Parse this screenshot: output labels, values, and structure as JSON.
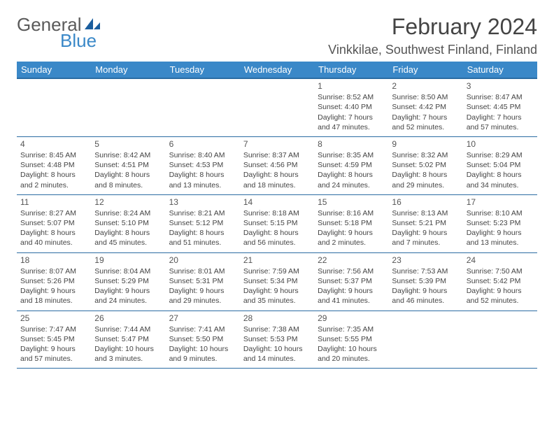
{
  "logo": {
    "text1": "General",
    "text2": "Blue",
    "sail_color": "#1b5e9e"
  },
  "header": {
    "month_title": "February 2024",
    "location": "Vinkkilae, Southwest Finland, Finland"
  },
  "calendar": {
    "header_bg": "#3a88c8",
    "header_border": "#2b6ca3",
    "day_headers": [
      "Sunday",
      "Monday",
      "Tuesday",
      "Wednesday",
      "Thursday",
      "Friday",
      "Saturday"
    ],
    "first_day_column": 4,
    "days": [
      {
        "n": 1,
        "sunrise": "8:52 AM",
        "sunset": "4:40 PM",
        "daylight": "7 hours and 47 minutes."
      },
      {
        "n": 2,
        "sunrise": "8:50 AM",
        "sunset": "4:42 PM",
        "daylight": "7 hours and 52 minutes."
      },
      {
        "n": 3,
        "sunrise": "8:47 AM",
        "sunset": "4:45 PM",
        "daylight": "7 hours and 57 minutes."
      },
      {
        "n": 4,
        "sunrise": "8:45 AM",
        "sunset": "4:48 PM",
        "daylight": "8 hours and 2 minutes."
      },
      {
        "n": 5,
        "sunrise": "8:42 AM",
        "sunset": "4:51 PM",
        "daylight": "8 hours and 8 minutes."
      },
      {
        "n": 6,
        "sunrise": "8:40 AM",
        "sunset": "4:53 PM",
        "daylight": "8 hours and 13 minutes."
      },
      {
        "n": 7,
        "sunrise": "8:37 AM",
        "sunset": "4:56 PM",
        "daylight": "8 hours and 18 minutes."
      },
      {
        "n": 8,
        "sunrise": "8:35 AM",
        "sunset": "4:59 PM",
        "daylight": "8 hours and 24 minutes."
      },
      {
        "n": 9,
        "sunrise": "8:32 AM",
        "sunset": "5:02 PM",
        "daylight": "8 hours and 29 minutes."
      },
      {
        "n": 10,
        "sunrise": "8:29 AM",
        "sunset": "5:04 PM",
        "daylight": "8 hours and 34 minutes."
      },
      {
        "n": 11,
        "sunrise": "8:27 AM",
        "sunset": "5:07 PM",
        "daylight": "8 hours and 40 minutes."
      },
      {
        "n": 12,
        "sunrise": "8:24 AM",
        "sunset": "5:10 PM",
        "daylight": "8 hours and 45 minutes."
      },
      {
        "n": 13,
        "sunrise": "8:21 AM",
        "sunset": "5:12 PM",
        "daylight": "8 hours and 51 minutes."
      },
      {
        "n": 14,
        "sunrise": "8:18 AM",
        "sunset": "5:15 PM",
        "daylight": "8 hours and 56 minutes."
      },
      {
        "n": 15,
        "sunrise": "8:16 AM",
        "sunset": "5:18 PM",
        "daylight": "9 hours and 2 minutes."
      },
      {
        "n": 16,
        "sunrise": "8:13 AM",
        "sunset": "5:21 PM",
        "daylight": "9 hours and 7 minutes."
      },
      {
        "n": 17,
        "sunrise": "8:10 AM",
        "sunset": "5:23 PM",
        "daylight": "9 hours and 13 minutes."
      },
      {
        "n": 18,
        "sunrise": "8:07 AM",
        "sunset": "5:26 PM",
        "daylight": "9 hours and 18 minutes."
      },
      {
        "n": 19,
        "sunrise": "8:04 AM",
        "sunset": "5:29 PM",
        "daylight": "9 hours and 24 minutes."
      },
      {
        "n": 20,
        "sunrise": "8:01 AM",
        "sunset": "5:31 PM",
        "daylight": "9 hours and 29 minutes."
      },
      {
        "n": 21,
        "sunrise": "7:59 AM",
        "sunset": "5:34 PM",
        "daylight": "9 hours and 35 minutes."
      },
      {
        "n": 22,
        "sunrise": "7:56 AM",
        "sunset": "5:37 PM",
        "daylight": "9 hours and 41 minutes."
      },
      {
        "n": 23,
        "sunrise": "7:53 AM",
        "sunset": "5:39 PM",
        "daylight": "9 hours and 46 minutes."
      },
      {
        "n": 24,
        "sunrise": "7:50 AM",
        "sunset": "5:42 PM",
        "daylight": "9 hours and 52 minutes."
      },
      {
        "n": 25,
        "sunrise": "7:47 AM",
        "sunset": "5:45 PM",
        "daylight": "9 hours and 57 minutes."
      },
      {
        "n": 26,
        "sunrise": "7:44 AM",
        "sunset": "5:47 PM",
        "daylight": "10 hours and 3 minutes."
      },
      {
        "n": 27,
        "sunrise": "7:41 AM",
        "sunset": "5:50 PM",
        "daylight": "10 hours and 9 minutes."
      },
      {
        "n": 28,
        "sunrise": "7:38 AM",
        "sunset": "5:53 PM",
        "daylight": "10 hours and 14 minutes."
      },
      {
        "n": 29,
        "sunrise": "7:35 AM",
        "sunset": "5:55 PM",
        "daylight": "10 hours and 20 minutes."
      }
    ]
  },
  "labels": {
    "sunrise": "Sunrise: ",
    "sunset": "Sunset: ",
    "daylight": "Daylight: "
  }
}
